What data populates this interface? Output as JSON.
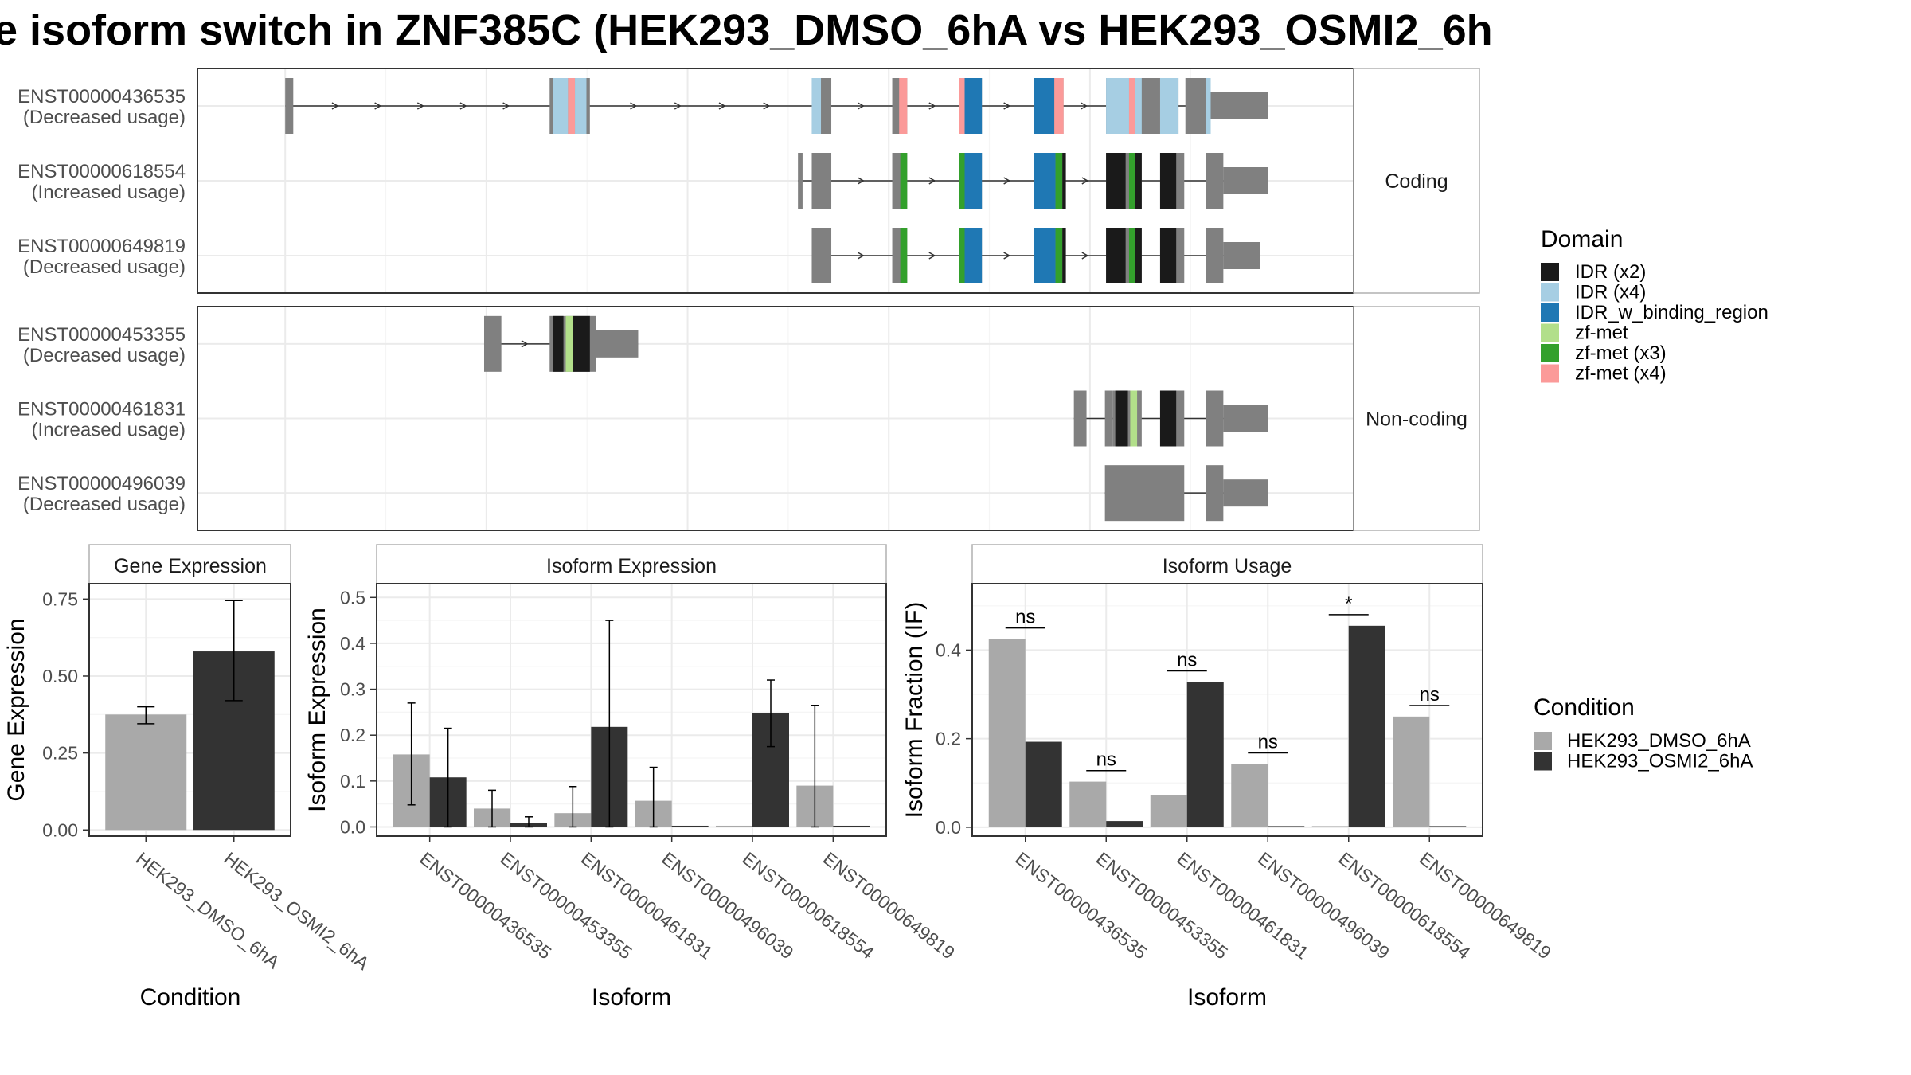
{
  "title": "e isoform switch in ZNF385C (HEK293_DMSO_6hA vs HEK293_OSMI2_6h",
  "colors": {
    "condition_dmso": "#a9a9a9",
    "condition_osmi2": "#333333",
    "exon": "#808080",
    "panel_border": "#333333",
    "strip_border": "#b0b0b0",
    "grid_major": "#ebebeb",
    "grid_minor": "#f5f5f5"
  },
  "structure": {
    "facets": [
      {
        "label": "Coding",
        "transcripts": [
          {
            "id": "ENST00000436535",
            "usage": "(Decreased usage)",
            "exons": [
              [
                0,
                7
              ],
              [
                230,
                265
              ],
              [
                458,
                475
              ],
              [
                528,
                541
              ],
              [
                586,
                606
              ],
              [
                651,
                677
              ],
              [
                714,
                777
              ],
              [
                783,
                805
              ]
            ],
            "utr": [
              [
                805,
                855
              ]
            ],
            "domains": [
              {
                "range": [
                  233,
                  246
                ],
                "domain": "IDR (x4)"
              },
              {
                "range": [
                  246,
                  252
                ],
                "domain": "zf-met (x4)"
              },
              {
                "range": [
                  252,
                  262
                ],
                "domain": "IDR (x4)"
              },
              {
                "range": [
                  458,
                  466
                ],
                "domain": "IDR (x4)"
              },
              {
                "range": [
                  534,
                  541
                ],
                "domain": "zf-met (x4)"
              },
              {
                "range": [
                  586,
                  591
                ],
                "domain": "zf-met (x4)"
              },
              {
                "range": [
                  591,
                  606
                ],
                "domain": "IDR_w_binding_region"
              },
              {
                "range": [
                  651,
                  669
                ],
                "domain": "IDR_w_binding_region"
              },
              {
                "range": [
                  669,
                  677
                ],
                "domain": "zf-met (x4)"
              },
              {
                "range": [
                  714,
                  734
                ],
                "domain": "IDR (x4)"
              },
              {
                "range": [
                  734,
                  739
                ],
                "domain": "zf-met (x4)"
              },
              {
                "range": [
                  739,
                  745
                ],
                "domain": "IDR (x4)"
              },
              {
                "range": [
                  761,
                  777
                ],
                "domain": "IDR (x4)"
              },
              {
                "range": [
                  801,
                  805
                ],
                "domain": "IDR (x4)"
              }
            ]
          },
          {
            "id": "ENST00000618554",
            "usage": "(Increased usage)",
            "exons": [
              [
                446,
                450
              ],
              [
                458,
                475
              ],
              [
                528,
                541
              ],
              [
                586,
                606
              ],
              [
                651,
                679
              ],
              [
                714,
                745
              ],
              [
                761,
                782
              ],
              [
                801,
                816
              ]
            ],
            "utr": [
              [
                816,
                855
              ]
            ],
            "domains": [
              {
                "range": [
                  535,
                  541
                ],
                "domain": "zf-met (x3)"
              },
              {
                "range": [
                  586,
                  591
                ],
                "domain": "zf-met (x3)"
              },
              {
                "range": [
                  591,
                  606
                ],
                "domain": "IDR_w_binding_region"
              },
              {
                "range": [
                  651,
                  670
                ],
                "domain": "IDR_w_binding_region"
              },
              {
                "range": [
                  670,
                  676
                ],
                "domain": "zf-met (x3)"
              },
              {
                "range": [
                  676,
                  679
                ],
                "domain": "IDR (x2)"
              },
              {
                "range": [
                  714,
                  731
                ],
                "domain": "IDR (x2)"
              },
              {
                "range": [
                  734,
                  739
                ],
                "domain": "zf-met (x3)"
              },
              {
                "range": [
                  739,
                  745
                ],
                "domain": "IDR (x2)"
              },
              {
                "range": [
                  761,
                  775
                ],
                "domain": "IDR (x2)"
              }
            ]
          },
          {
            "id": "ENST00000649819",
            "usage": "(Decreased usage)",
            "exons": [
              [
                458,
                475
              ],
              [
                528,
                541
              ],
              [
                586,
                606
              ],
              [
                651,
                679
              ],
              [
                714,
                745
              ],
              [
                761,
                782
              ],
              [
                801,
                816
              ]
            ],
            "utr": [
              [
                816,
                848
              ]
            ],
            "domains": [
              {
                "range": [
                  535,
                  541
                ],
                "domain": "zf-met (x3)"
              },
              {
                "range": [
                  586,
                  591
                ],
                "domain": "zf-met (x3)"
              },
              {
                "range": [
                  591,
                  606
                ],
                "domain": "IDR_w_binding_region"
              },
              {
                "range": [
                  651,
                  670
                ],
                "domain": "IDR_w_binding_region"
              },
              {
                "range": [
                  670,
                  676
                ],
                "domain": "zf-met (x3)"
              },
              {
                "range": [
                  676,
                  679
                ],
                "domain": "IDR (x2)"
              },
              {
                "range": [
                  714,
                  731
                ],
                "domain": "IDR (x2)"
              },
              {
                "range": [
                  734,
                  739
                ],
                "domain": "zf-met (x3)"
              },
              {
                "range": [
                  739,
                  745
                ],
                "domain": "IDR (x2)"
              },
              {
                "range": [
                  761,
                  775
                ],
                "domain": "IDR (x2)"
              }
            ]
          }
        ]
      },
      {
        "label": "Non-coding",
        "transcripts": [
          {
            "id": "ENST00000453355",
            "usage": "(Decreased usage)",
            "exons": [
              [
                173,
                188
              ],
              [
                230,
                270
              ]
            ],
            "utr": [
              [
                270,
                307
              ]
            ],
            "domains": [
              {
                "range": [
                  233,
                  242
                ],
                "domain": "IDR (x2)"
              },
              {
                "range": [
                  244,
                  250
                ],
                "domain": "zf-met"
              },
              {
                "range": [
                  250,
                  265
                ],
                "domain": "IDR (x2)"
              }
            ]
          },
          {
            "id": "ENST00000461831",
            "usage": "(Increased usage)",
            "exons": [
              [
                686,
                697
              ],
              [
                713,
                720
              ],
              [
                720,
                745
              ],
              [
                761,
                782
              ],
              [
                801,
                816
              ]
            ],
            "utr": [
              [
                816,
                855
              ]
            ],
            "domains": [
              {
                "range": [
                  722,
                  733
                ],
                "domain": "IDR (x2)"
              },
              {
                "range": [
                  735,
                  741
                ],
                "domain": "zf-met"
              },
              {
                "range": [
                  761,
                  775
                ],
                "domain": "IDR (x2)"
              }
            ]
          },
          {
            "id": "ENST00000496039",
            "usage": "(Decreased usage)",
            "exons": [
              [
                713,
                782
              ],
              [
                801,
                816
              ]
            ],
            "utr": [
              [
                816,
                855
              ]
            ],
            "domains": []
          }
        ]
      }
    ]
  },
  "legend_domain": {
    "title": "Domain",
    "items": [
      {
        "label": "IDR (x2)",
        "color": "#1a1a1a"
      },
      {
        "label": "IDR (x4)",
        "color": "#a6cee3"
      },
      {
        "label": "IDR_w_binding_region",
        "color": "#1f78b4"
      },
      {
        "label": "zf-met",
        "color": "#b2df8a"
      },
      {
        "label": "zf-met (x3)",
        "color": "#33a02c"
      },
      {
        "label": "zf-met (x4)",
        "color": "#fb9a99"
      }
    ]
  },
  "legend_condition": {
    "title": "Condition",
    "items": [
      {
        "label": "HEK293_DMSO_6hA",
        "color": "#a9a9a9"
      },
      {
        "label": "HEK293_OSMI2_6hA",
        "color": "#333333"
      }
    ]
  },
  "chart_data": [
    {
      "type": "bar",
      "title": "Gene Expression",
      "xlabel": "Condition",
      "ylabel": "Gene Expression",
      "ylim": [
        -0.02,
        0.8
      ],
      "yticks": [
        0.0,
        0.25,
        0.5,
        0.75
      ],
      "ytick_labels": [
        "0.00",
        "0.25",
        "0.50",
        "0.75"
      ],
      "categories": [
        "HEK293_DMSO_6hA",
        "HEK293_OSMI2_6hA"
      ],
      "series": [
        {
          "name": "HEK293_DMSO_6hA",
          "values": [
            0.375,
            null
          ],
          "err_low": [
            0.345,
            null
          ],
          "err_high": [
            0.4,
            null
          ]
        },
        {
          "name": "HEK293_OSMI2_6hA",
          "values": [
            null,
            0.58
          ],
          "err_low": [
            null,
            0.42
          ],
          "err_high": [
            null,
            0.745
          ]
        }
      ]
    },
    {
      "type": "bar",
      "title": "Isoform Expression",
      "xlabel": "Isoform",
      "ylabel": "Isoform Expression",
      "ylim": [
        -0.02,
        0.53
      ],
      "yticks": [
        0.0,
        0.1,
        0.2,
        0.3,
        0.4,
        0.5
      ],
      "ytick_labels": [
        "0.0",
        "0.1",
        "0.2",
        "0.3",
        "0.4",
        "0.5"
      ],
      "categories": [
        "ENST00000436535",
        "ENST00000453355",
        "ENST00000461831",
        "ENST00000496039",
        "ENST00000618554",
        "ENST00000649819"
      ],
      "series": [
        {
          "name": "HEK293_DMSO_6hA",
          "values": [
            0.158,
            0.04,
            0.03,
            0.057,
            0.0,
            0.09
          ],
          "err_low": [
            0.048,
            0.0,
            0.0,
            0.0,
            null,
            0.0
          ],
          "err_high": [
            0.27,
            0.08,
            0.088,
            0.13,
            null,
            0.265
          ]
        },
        {
          "name": "HEK293_OSMI2_6hA",
          "values": [
            0.108,
            0.008,
            0.218,
            0.0,
            0.248,
            0.0
          ],
          "err_low": [
            0.0,
            0.0,
            0.0,
            null,
            0.175,
            null
          ],
          "err_high": [
            0.215,
            0.022,
            0.45,
            null,
            0.32,
            null
          ]
        }
      ]
    },
    {
      "type": "bar",
      "title": "Isoform Usage",
      "xlabel": "Isoform",
      "ylabel": "Isoform Fraction (IF)",
      "ylim": [
        -0.02,
        0.55
      ],
      "yticks": [
        0.0,
        0.2,
        0.4
      ],
      "ytick_labels": [
        "0.0",
        "0.2",
        "0.4"
      ],
      "categories": [
        "ENST00000436535",
        "ENST00000453355",
        "ENST00000461831",
        "ENST00000496039",
        "ENST00000618554",
        "ENST00000649819"
      ],
      "series": [
        {
          "name": "HEK293_DMSO_6hA",
          "values": [
            0.425,
            0.103,
            0.072,
            0.143,
            0.0,
            0.25
          ]
        },
        {
          "name": "HEK293_OSMI2_6hA",
          "values": [
            0.193,
            0.014,
            0.328,
            0.0,
            0.455,
            0.0
          ]
        }
      ],
      "significance": [
        {
          "label": "ns",
          "y": 0.45
        },
        {
          "label": "ns",
          "y": 0.128
        },
        {
          "label": "ns",
          "y": 0.353
        },
        {
          "label": "ns",
          "y": 0.168
        },
        {
          "label": "*",
          "y": 0.48
        },
        {
          "label": "ns",
          "y": 0.275
        }
      ]
    }
  ]
}
